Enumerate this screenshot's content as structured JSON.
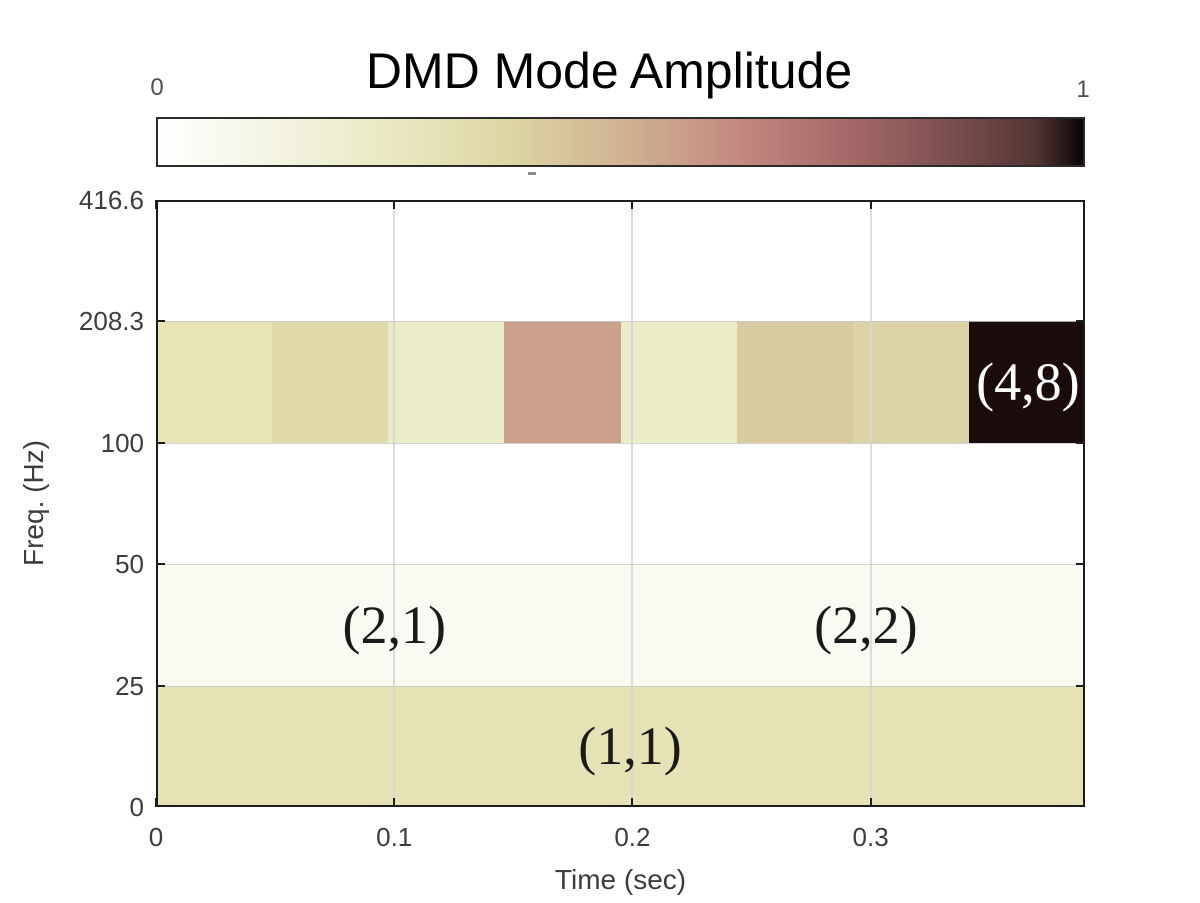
{
  "figure": {
    "title": "DMD Mode Amplitude",
    "colorbar": {
      "min_label": "0",
      "max_label": "1",
      "gradient_stops": [
        "#ffffff 0%",
        "#f4f4e3 12.5%",
        "#e9e9c3 25%",
        "#ddd7a5 37.5%",
        "#d0b493 50%",
        "#c38a80 62.5%",
        "#a56868 75%",
        "#744a4a 87.5%",
        "#523434 95%",
        "#0a0404 100%"
      ]
    },
    "axes": {
      "xlabel": "Time (sec)",
      "ylabel": "Freq. (Hz)",
      "x_tick_labels": [
        "0",
        "0.1",
        "0.2",
        "0.3"
      ],
      "y_tick_labels_bottom_to_top": [
        "0",
        "25",
        "50",
        "100",
        "208.3",
        "416.6"
      ]
    }
  },
  "chart_data": {
    "type": "heatmap",
    "title": "DMD Mode Amplitude",
    "xlabel": "Time (sec)",
    "ylabel": "Freq. (Hz)",
    "x_range_sec": [
      0,
      0.39
    ],
    "x_ticks_sec": [
      0,
      0.1,
      0.2,
      0.3
    ],
    "y_band_edges_hz": [
      0,
      25,
      50,
      100,
      208.3,
      416.6
    ],
    "y_axis_style": "octave bands, equally spaced on screen",
    "colorbar": {
      "min": 0,
      "max": 1,
      "colormap": "reversed pink (white-khaki-rose-black)"
    },
    "grid": true,
    "rows_top_to_bottom": [
      {
        "freq_band_hz": "208.3-416.6",
        "color": "#ffffff",
        "amplitude": 0.0
      },
      {
        "freq_band_hz": "100-208.3",
        "cells": [
          {
            "t": [
              0.0,
              0.049
            ],
            "amplitude": 0.3,
            "color": "#e7e5b6"
          },
          {
            "t": [
              0.049,
              0.098
            ],
            "amplitude": 0.35,
            "color": "#dfdaaa"
          },
          {
            "t": [
              0.098,
              0.146
            ],
            "amplitude": 0.25,
            "color": "#ebecca"
          },
          {
            "t": [
              0.146,
              0.195
            ],
            "amplitude": 0.55,
            "color": "#cb9f8e"
          },
          {
            "t": [
              0.195,
              0.244
            ],
            "amplitude": 0.24,
            "color": "#ecedc8"
          },
          {
            "t": [
              0.244,
              0.293
            ],
            "amplitude": 0.42,
            "color": "#d8cba2"
          },
          {
            "t": [
              0.293,
              0.341
            ],
            "amplitude": 0.38,
            "color": "#ddd3a8"
          },
          {
            "t": [
              0.341,
              0.39
            ],
            "amplitude": 1.0,
            "color": "#1a0c0b"
          }
        ]
      },
      {
        "freq_band_hz": "50-100",
        "color": "#ffffff",
        "amplitude": 0.0
      },
      {
        "freq_band_hz": "25-50",
        "color": "#fafaf2",
        "amplitude": 0.08
      },
      {
        "freq_band_hz": "0-25",
        "color": "#e5e3b5",
        "amplitude": 0.3
      }
    ],
    "annotations": [
      {
        "text": "(2,1)",
        "t_sec": 0.1,
        "freq_band_hz": "25-50",
        "color": "#1a1a1a"
      },
      {
        "text": "(2,2)",
        "t_sec": 0.298,
        "freq_band_hz": "25-50",
        "color": "#1a1a1a"
      },
      {
        "text": "(1,1)",
        "t_sec": 0.199,
        "freq_band_hz": "0-25",
        "color": "#1a1a1a"
      },
      {
        "text": "(4,8)",
        "t_sec": 0.366,
        "freq_band_hz": "100-208.3",
        "color": "#ffffff"
      }
    ]
  }
}
